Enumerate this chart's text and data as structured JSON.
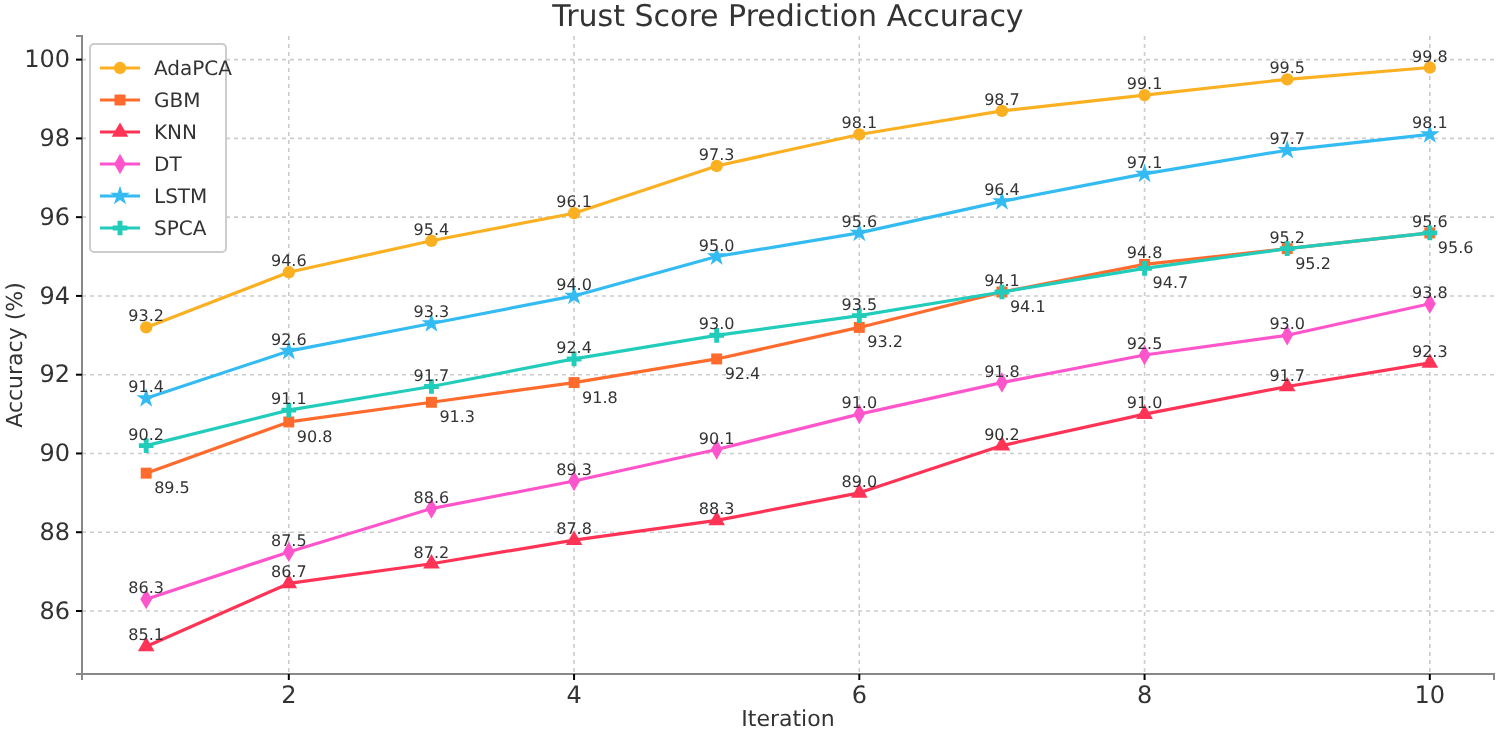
{
  "chart_data": {
    "type": "line",
    "title": "Trust Score Prediction Accuracy",
    "xlabel": "Iteration",
    "ylabel": "Accuracy (%)",
    "x": [
      1,
      2,
      3,
      4,
      5,
      6,
      7,
      8,
      9,
      10
    ],
    "xlim": [
      0.55,
      10.45
    ],
    "xticks": [
      2,
      4,
      6,
      8,
      10
    ],
    "ylim": [
      84.4,
      100.6
    ],
    "yticks": [
      86,
      88,
      90,
      92,
      94,
      96,
      98,
      100
    ],
    "grid": true,
    "legend": "top left",
    "line_style": "solid",
    "series": [
      {
        "name": "AdaPCA",
        "color": "#fbb022",
        "marker": "circle",
        "values": [
          93.2,
          94.6,
          95.4,
          96.1,
          97.3,
          98.1,
          98.7,
          99.1,
          99.5,
          99.8
        ],
        "value_labels": [
          "93.2",
          "94.6",
          "95.4",
          "96.1",
          "97.3",
          "98.1",
          "98.7",
          "99.1",
          "99.5",
          "99.8"
        ]
      },
      {
        "name": "GBM",
        "color": "#ff6a2d",
        "marker": "square",
        "values": [
          89.5,
          90.8,
          91.3,
          91.8,
          92.4,
          93.2,
          94.1,
          94.8,
          95.2,
          95.6
        ],
        "value_labels": [
          "89.5",
          "90.8",
          "91.3",
          "91.8",
          "92.4",
          "93.2",
          "94.1",
          "94.8",
          "95.2",
          "95.6"
        ]
      },
      {
        "name": "KNN",
        "color": "#ff3355",
        "marker": "triangle",
        "values": [
          85.1,
          86.7,
          87.2,
          87.8,
          88.3,
          89.0,
          90.2,
          91.0,
          91.7,
          92.3
        ],
        "value_labels": [
          "85.1",
          "86.7",
          "87.2",
          "87.8",
          "88.3",
          "89.0",
          "90.2",
          "91.0",
          "91.7",
          "92.3"
        ]
      },
      {
        "name": "DT",
        "color": "#ff55cc",
        "marker": "diamond",
        "values": [
          86.3,
          87.5,
          88.6,
          89.3,
          90.1,
          91.0,
          91.8,
          92.5,
          93.0,
          93.8
        ],
        "value_labels": [
          "86.3",
          "87.5",
          "88.6",
          "89.3",
          "90.1",
          "91.0",
          "91.8",
          "92.5",
          "93.0",
          "93.8"
        ]
      },
      {
        "name": "LSTM",
        "color": "#33bbf2",
        "marker": "star",
        "values": [
          91.4,
          92.6,
          93.3,
          94.0,
          95.0,
          95.6,
          96.4,
          97.1,
          97.7,
          98.1
        ],
        "value_labels": [
          "91.4",
          "92.6",
          "93.3",
          "94.0",
          "95.0",
          "95.6",
          "96.4",
          "97.1",
          "97.7",
          "98.1"
        ]
      },
      {
        "name": "SPCA",
        "color": "#22ccbb",
        "marker": "cross",
        "values": [
          90.2,
          91.1,
          91.7,
          92.4,
          93.0,
          93.5,
          94.1,
          94.7,
          95.2,
          95.6
        ],
        "value_labels": [
          "90.2",
          "91.1",
          "91.7",
          "92.4",
          "93.0",
          "93.5",
          "94.1",
          "94.7",
          "95.2",
          "95.6"
        ]
      }
    ]
  }
}
